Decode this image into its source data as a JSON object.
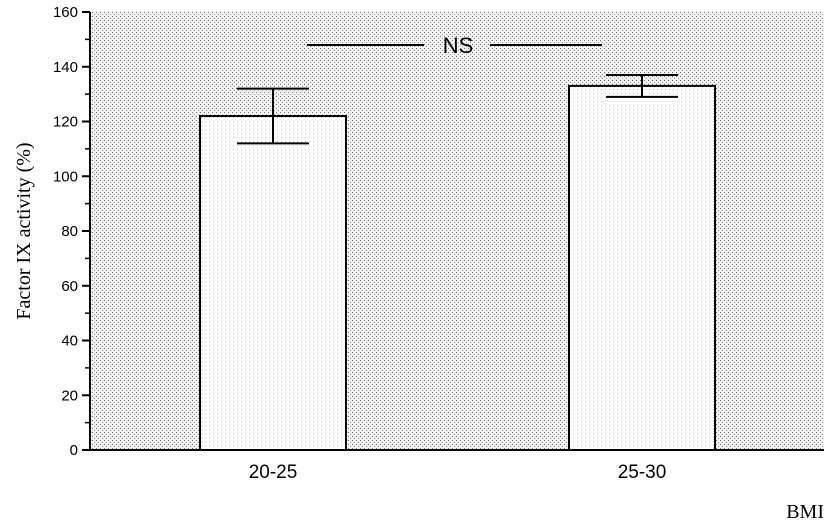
{
  "chart_data": {
    "type": "bar",
    "categories": [
      "20-25",
      "25-30"
    ],
    "values": [
      122,
      133
    ],
    "errors": [
      10,
      4
    ],
    "xlabel": "BMI",
    "ylabel": "Factor IX activity (%)",
    "ylim": [
      0,
      160
    ],
    "yticks": [
      0,
      20,
      40,
      60,
      80,
      100,
      120,
      140,
      160
    ],
    "annotation": "NS",
    "grid": false,
    "background": "stippled",
    "colors": {
      "bar_fill": "#ffffff",
      "stroke": "#000000",
      "plot_bg": "#e3e3e3"
    }
  }
}
